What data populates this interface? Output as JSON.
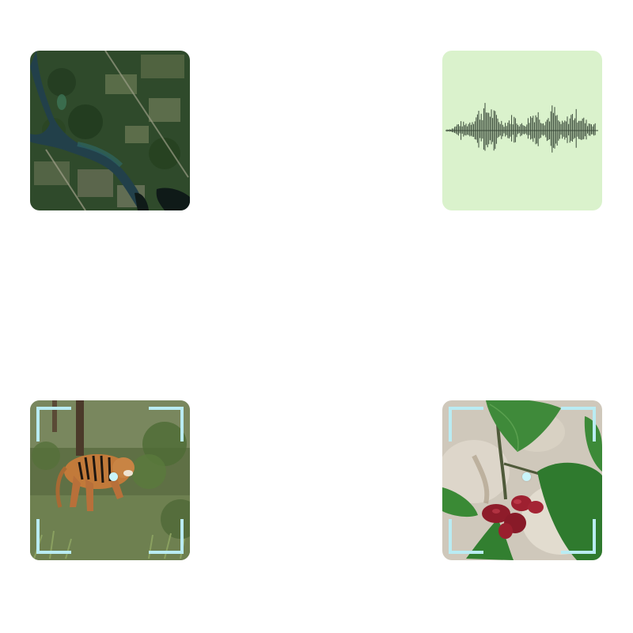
{
  "tiles": [
    {
      "id": "satellite",
      "icon": "satellite-map-icon",
      "background": "#2d4a2a"
    },
    {
      "id": "audio",
      "icon": "audio-waveform-icon",
      "background": "#daf2cc",
      "waveform_color": "#3a4a3a"
    },
    {
      "id": "tiger",
      "icon": "tiger-photo-icon",
      "frame_color": "#b9ecf3"
    },
    {
      "id": "plant",
      "icon": "plant-photo-icon",
      "frame_color": "#b9ecf3"
    }
  ]
}
